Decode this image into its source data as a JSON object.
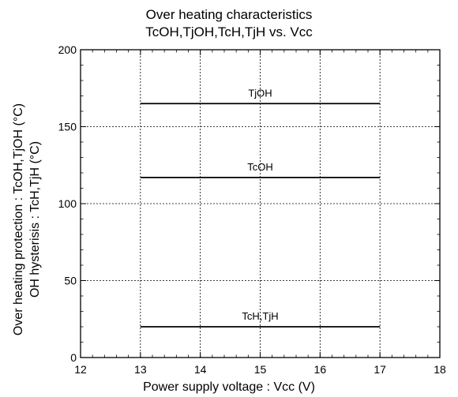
{
  "chart_data": {
    "type": "line",
    "title_lines": [
      "Over heating characteristics",
      "TcOH,TjOH,TcH,TjH vs. Vcc"
    ],
    "xlabel": "Power supply voltage : Vcc (V)",
    "ylabel_lines": [
      "Over heating protection : TcOH,TjOH (°C)",
      "OH hysterisis : TcH,TjH (°C)"
    ],
    "xlim": [
      12,
      18
    ],
    "ylim": [
      0,
      200
    ],
    "xticks": [
      12,
      13,
      14,
      15,
      16,
      17,
      18
    ],
    "yticks": [
      0,
      50,
      100,
      150,
      200
    ],
    "grid": true,
    "series": [
      {
        "name": "TjOH",
        "x": [
          13,
          17
        ],
        "y": [
          165,
          165
        ]
      },
      {
        "name": "TcOH",
        "x": [
          13,
          17
        ],
        "y": [
          117,
          117
        ]
      },
      {
        "name": "TcH,TjH",
        "x": [
          13,
          17
        ],
        "y": [
          20,
          20
        ]
      }
    ]
  }
}
